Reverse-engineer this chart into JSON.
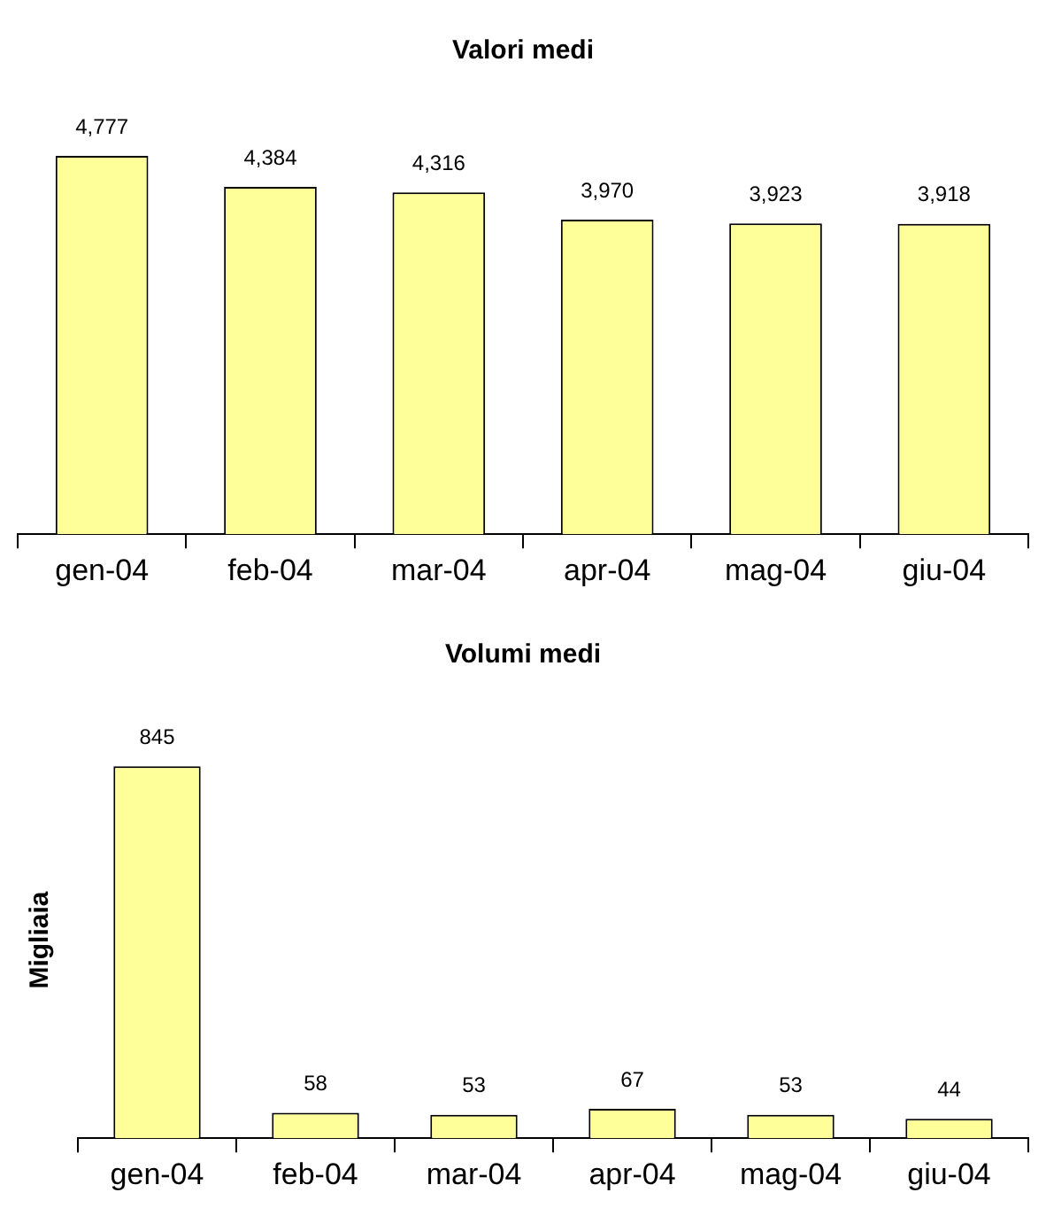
{
  "chart_data": [
    {
      "type": "bar",
      "title": "Valori medi",
      "categories": [
        "gen-04",
        "feb-04",
        "mar-04",
        "apr-04",
        "mag-04",
        "giu-04"
      ],
      "values": [
        4777,
        4384,
        4316,
        3970,
        3923,
        3918
      ],
      "value_labels": [
        "4,777",
        "4,384",
        "4,316",
        "3,970",
        "3,923",
        "3,918"
      ],
      "color": "#ffff99",
      "grid": false,
      "legend": false,
      "tick_labels": "x"
    },
    {
      "type": "bar",
      "title": "Volumi medi",
      "ylabel": "Migliaia",
      "categories": [
        "gen-04",
        "feb-04",
        "mar-04",
        "apr-04",
        "mag-04",
        "giu-04"
      ],
      "values": [
        845,
        58,
        53,
        67,
        53,
        44
      ],
      "data_labels": true,
      "color": "#ffff99",
      "grid": false,
      "legend": false,
      "tick_labels": "x"
    }
  ]
}
